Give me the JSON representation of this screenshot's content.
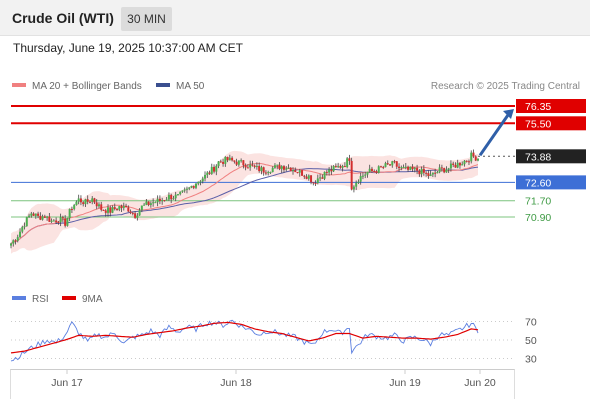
{
  "header": {
    "title": "Crude Oil (WTI)",
    "timeframe": "30 MIN",
    "datetime": "Thursday, June 19, 2025 10:37:00 AM CET"
  },
  "legend": {
    "ma20_label": "MA 20 + Bollinger Bands",
    "ma50_label": "MA 50",
    "credit": "Research © 2025 Trading Central"
  },
  "rsi_legend": {
    "rsi_label": "RSI",
    "ma_label": "9MA"
  },
  "colors": {
    "bull": "#4caf50",
    "bear": "#d32f2f",
    "ma20": "#f08080",
    "ma50": "#5b5fa8",
    "band": "#fbe3e1",
    "resistance": "#e00000",
    "support_pivot": "#3d6fd6",
    "support_green": "#7cc47f",
    "arrow": "#2f5fa8"
  },
  "chart_data": [
    {
      "type": "candlestick",
      "title": "Crude Oil (WTI)",
      "ylim": [
        69.2,
        76.85
      ],
      "x_ticks": [
        "Jun 17",
        "Jun 18",
        "Jun 19",
        "Jun 20"
      ],
      "price_levels": [
        {
          "label": "76.35",
          "value": 76.35,
          "kind": "resistance"
        },
        {
          "label": "75.50",
          "value": 75.5,
          "kind": "resistance"
        },
        {
          "label": "73.88",
          "value": 73.88,
          "kind": "last"
        },
        {
          "label": "72.60",
          "value": 72.6,
          "kind": "pivot"
        },
        {
          "label": "71.70",
          "value": 71.7,
          "kind": "support"
        },
        {
          "label": "70.90",
          "value": 70.9,
          "kind": "support"
        }
      ],
      "forecast_arrow": {
        "from": 73.88,
        "to": 76.35
      },
      "close_path": [
        [
          0,
          69.6
        ],
        [
          3,
          70.0
        ],
        [
          6,
          70.6
        ],
        [
          9,
          71.1
        ],
        [
          12,
          70.9
        ],
        [
          15,
          70.95
        ],
        [
          18,
          70.7
        ],
        [
          21,
          70.8
        ],
        [
          24,
          70.6
        ],
        [
          27,
          71.4
        ],
        [
          30,
          71.75
        ],
        [
          33,
          71.6
        ],
        [
          36,
          71.8
        ],
        [
          40,
          71.3
        ],
        [
          44,
          71.2
        ],
        [
          48,
          71.4
        ],
        [
          52,
          71.3
        ],
        [
          55,
          71.0
        ],
        [
          58,
          71.4
        ],
        [
          62,
          71.6
        ],
        [
          66,
          71.7
        ],
        [
          70,
          71.9
        ],
        [
          74,
          71.9
        ],
        [
          78,
          72.2
        ],
        [
          82,
          72.6
        ],
        [
          86,
          72.9
        ],
        [
          90,
          73.3
        ],
        [
          92,
          73.6
        ],
        [
          96,
          73.7
        ],
        [
          100,
          73.6
        ],
        [
          104,
          73.5
        ],
        [
          108,
          73.3
        ],
        [
          112,
          73.2
        ],
        [
          116,
          73.3
        ],
        [
          120,
          73.4
        ],
        [
          124,
          73.3
        ],
        [
          128,
          73.1
        ],
        [
          132,
          72.9
        ],
        [
          134,
          72.6
        ],
        [
          136,
          72.8
        ],
        [
          140,
          73.1
        ],
        [
          144,
          73.3
        ],
        [
          148,
          73.5
        ],
        [
          150,
          73.8
        ],
        [
          151,
          72.4
        ],
        [
          152,
          72.5
        ],
        [
          154,
          72.8
        ],
        [
          158,
          73.1
        ],
        [
          162,
          73.2
        ],
        [
          166,
          73.4
        ],
        [
          170,
          73.5
        ],
        [
          172,
          73.3
        ],
        [
          176,
          73.2
        ],
        [
          180,
          73.2
        ],
        [
          184,
          73.0
        ],
        [
          186,
          72.9
        ],
        [
          190,
          73.2
        ],
        [
          194,
          73.3
        ],
        [
          198,
          73.5
        ],
        [
          202,
          73.7
        ],
        [
          204,
          73.9
        ],
        [
          207,
          73.8
        ]
      ]
    },
    {
      "type": "line",
      "title": "RSI",
      "y_ticks": [
        70,
        50,
        30
      ],
      "ylim": [
        20,
        80
      ],
      "series": [
        {
          "name": "RSI",
          "values_path": [
            [
              0,
              28
            ],
            [
              4,
              33
            ],
            [
              8,
              40
            ],
            [
              12,
              45
            ],
            [
              16,
              50
            ],
            [
              20,
              47
            ],
            [
              24,
              55
            ],
            [
              27,
              68
            ],
            [
              30,
              58
            ],
            [
              34,
              48
            ],
            [
              38,
              56
            ],
            [
              42,
              53
            ],
            [
              46,
              58
            ],
            [
              50,
              46
            ],
            [
              54,
              53
            ],
            [
              58,
              55
            ],
            [
              62,
              60
            ],
            [
              66,
              55
            ],
            [
              70,
              64
            ],
            [
              74,
              59
            ],
            [
              78,
              64
            ],
            [
              82,
              62
            ],
            [
              86,
              68
            ],
            [
              90,
              69
            ],
            [
              94,
              66
            ],
            [
              98,
              71
            ],
            [
              102,
              65
            ],
            [
              106,
              61
            ],
            [
              110,
              56
            ],
            [
              114,
              60
            ],
            [
              118,
              58
            ],
            [
              122,
              55
            ],
            [
              126,
              53
            ],
            [
              130,
              48
            ],
            [
              134,
              44
            ],
            [
              138,
              58
            ],
            [
              142,
              62
            ],
            [
              146,
              57
            ],
            [
              150,
              64
            ],
            [
              151,
              38
            ],
            [
              154,
              45
            ],
            [
              158,
              56
            ],
            [
              162,
              54
            ],
            [
              166,
              52
            ],
            [
              170,
              55
            ],
            [
              174,
              49
            ],
            [
              178,
              53
            ],
            [
              182,
              51
            ],
            [
              186,
              46
            ],
            [
              190,
              56
            ],
            [
              194,
              55
            ],
            [
              198,
              60
            ],
            [
              202,
              65
            ],
            [
              204,
              68
            ],
            [
              207,
              60
            ]
          ]
        },
        {
          "name": "9MA",
          "values_path": [
            [
              0,
              36
            ],
            [
              6,
              38
            ],
            [
              12,
              42
            ],
            [
              18,
              46
            ],
            [
              24,
              50
            ],
            [
              30,
              55
            ],
            [
              36,
              54
            ],
            [
              42,
              55
            ],
            [
              48,
              54
            ],
            [
              54,
              53
            ],
            [
              60,
              56
            ],
            [
              66,
              58
            ],
            [
              72,
              60
            ],
            [
              78,
              63
            ],
            [
              84,
              65
            ],
            [
              90,
              68
            ],
            [
              96,
              69
            ],
            [
              102,
              67
            ],
            [
              108,
              62
            ],
            [
              114,
              59
            ],
            [
              120,
              57
            ],
            [
              126,
              53
            ],
            [
              132,
              49
            ],
            [
              138,
              52
            ],
            [
              144,
              57
            ],
            [
              150,
              57
            ],
            [
              156,
              52
            ],
            [
              162,
              54
            ],
            [
              168,
              53
            ],
            [
              174,
              52
            ],
            [
              180,
              52
            ],
            [
              186,
              51
            ],
            [
              192,
              53
            ],
            [
              198,
              56
            ],
            [
              204,
              62
            ],
            [
              207,
              61
            ]
          ]
        }
      ]
    }
  ]
}
